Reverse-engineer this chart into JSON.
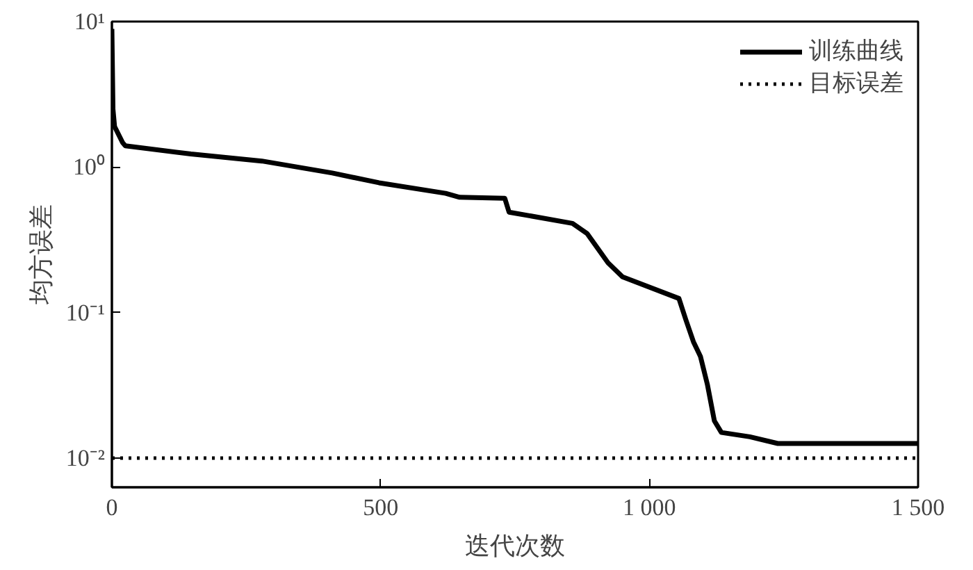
{
  "chart_data": {
    "type": "line",
    "xlabel": "迭代次数",
    "ylabel": "均方误差",
    "log": "y",
    "grid": false,
    "legend": "top right",
    "line_style": "solid",
    "marker": "none",
    "xlim": [
      0,
      1500
    ],
    "xticks": [
      0,
      500,
      {
        "value": 1000,
        "label": "1 000"
      },
      {
        "value": 1500,
        "label": "1 500"
      }
    ],
    "ylim": [
      0.0063,
      10
    ],
    "yticks": [
      {
        "value": 0.01,
        "label": "10⁻²"
      },
      {
        "value": 0.1,
        "label": "10⁻¹"
      },
      {
        "value": 1,
        "label": "10⁰"
      },
      {
        "value": 10,
        "label": "10¹"
      }
    ],
    "series": [
      {
        "name": "训练曲线",
        "color": "#000000",
        "x": [
          0,
          2,
          5,
          20,
          25,
          147,
          279,
          410,
          497,
          621,
          647,
          731,
          739,
          857,
          884,
          923,
          950,
          1055,
          1068,
          1082,
          1095,
          1108,
          1121,
          1134,
          1187,
          1239,
          1500
        ],
        "values": [
          8.9,
          2.5,
          1.9,
          1.47,
          1.4,
          1.23,
          1.1,
          0.91,
          0.78,
          0.66,
          0.62,
          0.61,
          0.49,
          0.41,
          0.35,
          0.22,
          0.176,
          0.125,
          0.089,
          0.063,
          0.05,
          0.032,
          0.018,
          0.015,
          0.014,
          0.0126,
          0.0126
        ]
      }
    ],
    "ref_lines": [
      {
        "axis": "y",
        "value": 0.01,
        "label": "目标误差",
        "color": "#000000",
        "line_style": "dotted"
      }
    ]
  }
}
